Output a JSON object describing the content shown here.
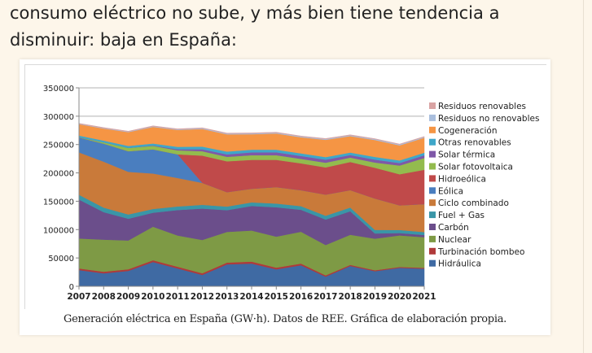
{
  "article": {
    "intro_text": "consumo eléctrico no sube, y más bien tiene tendencia a disminuir: baja en España:"
  },
  "figure": {
    "caption": "Generación eléctrica en España (GW·h). Datos de REE. Gráfica de elaboración propia."
  },
  "chart_data": {
    "type": "area",
    "stacked": true,
    "title": "",
    "xlabel": "",
    "ylabel": "",
    "x": [
      "2007",
      "2008",
      "2009",
      "2010",
      "2011",
      "2012",
      "2013",
      "2014",
      "2015",
      "2016",
      "2017",
      "2018",
      "2019",
      "2020",
      "2021"
    ],
    "yticks": [
      "0",
      "50000",
      "100000",
      "150000",
      "200000",
      "250000",
      "300000",
      "350000"
    ],
    "ylim": [
      0,
      350000
    ],
    "grid": "horizontal",
    "legend_position": "right",
    "series": [
      {
        "name": "Hidráulica",
        "color": "#3f6aa3",
        "values": [
          28700,
          23000,
          27300,
          42900,
          31600,
          20100,
          38700,
          40100,
          30000,
          37200,
          17100,
          35800,
          26700,
          32500,
          31100
        ]
      },
      {
        "name": "Turbinación bombeo",
        "color": "#b03a3a",
        "values": [
          2900,
          2800,
          2800,
          3100,
          3000,
          3000,
          3200,
          3500,
          3000,
          3000,
          2200,
          2100,
          1700,
          1700,
          1600
        ]
      },
      {
        "name": "Nuclear",
        "color": "#7e9a45",
        "values": [
          52700,
          56600,
          50800,
          59100,
          55100,
          58600,
          54100,
          54800,
          54700,
          56000,
          53600,
          53000,
          55700,
          55600,
          54000
        ]
      },
      {
        "name": "Carbón",
        "color": "#6b4e8b",
        "values": [
          68800,
          48400,
          38300,
          24700,
          44800,
          55500,
          38300,
          43300,
          51700,
          38800,
          44800,
          41500,
          9100,
          4200,
          3800
        ]
      },
      {
        "name": "Fuel + Gas",
        "color": "#3a96a7",
        "values": [
          8400,
          8000,
          7600,
          6600,
          6400,
          6600,
          6400,
          6300,
          6600,
          6500,
          6800,
          6600,
          6300,
          5400,
          5200
        ]
      },
      {
        "name": "Ciclo combinado",
        "color": "#c97a3a",
        "values": [
          74700,
          81100,
          75100,
          62500,
          50100,
          38600,
          25400,
          24100,
          29000,
          28100,
          37300,
          30700,
          55400,
          43400,
          49300
        ]
      },
      {
        "name": "Eólica",
        "color": "#4a7ebf",
        "values": [
          26300,
          31700,
          36400,
          42700,
          41800,
          0,
          0,
          0,
          0,
          0,
          0,
          0,
          0,
          0,
          0
        ]
      },
      {
        "name": "Hidroeólica",
        "color": "#c04a4a",
        "values": [
          0,
          0,
          0,
          0,
          0,
          48100,
          54300,
          51000,
          48100,
          47300,
          47900,
          49600,
          54200,
          54900,
          60500
        ]
      },
      {
        "name": "Solar fotovoltaica",
        "color": "#93bb4e",
        "values": [
          500,
          2400,
          5800,
          6100,
          7100,
          7800,
          7900,
          8200,
          8200,
          7900,
          8400,
          7800,
          9200,
          15300,
          20900
        ]
      },
      {
        "name": "Solar térmica",
        "color": "#7f58a8",
        "values": [
          0,
          0,
          100,
          700,
          1800,
          3400,
          4400,
          5000,
          5100,
          5100,
          5300,
          4400,
          5200,
          4500,
          4700
        ]
      },
      {
        "name": "Otras renovables",
        "color": "#3fa7c9",
        "values": [
          2900,
          3100,
          3400,
          3500,
          4300,
          4700,
          5000,
          4700,
          4600,
          4600,
          4500,
          4500,
          4700,
          4600,
          4600
        ]
      },
      {
        "name": "Cogeneración",
        "color": "#f59544",
        "values": [
          20100,
          21200,
          24300,
          29300,
          29900,
          31200,
          30400,
          27300,
          28600,
          28400,
          30400,
          29000,
          29900,
          26500,
          26300
        ]
      },
      {
        "name": "Residuos no renovables",
        "color": "#a9bedd",
        "values": [
          800,
          900,
          900,
          900,
          1000,
          1200,
          1300,
          1400,
          1400,
          1400,
          1500,
          1400,
          1500,
          1500,
          1400
        ]
      },
      {
        "name": "Residuos renovables",
        "color": "#d9a3a3",
        "values": [
          700,
          800,
          800,
          900,
          800,
          800,
          800,
          800,
          800,
          800,
          800,
          800,
          800,
          800,
          800
        ]
      }
    ]
  }
}
